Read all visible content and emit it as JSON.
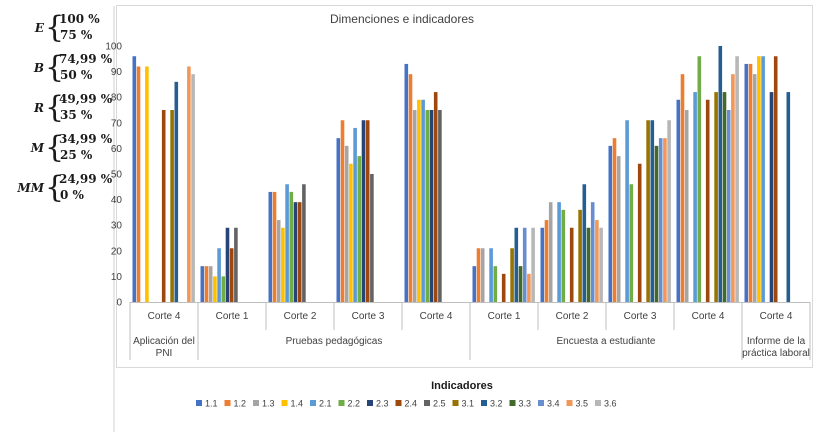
{
  "scale": [
    {
      "grade": "E",
      "upper": "100 %",
      "lower": "75 %"
    },
    {
      "grade": "B",
      "upper": "74,99 %",
      "lower": "50 %"
    },
    {
      "grade": "R",
      "upper": "49,99 %",
      "lower": "35 %"
    },
    {
      "grade": "M",
      "upper": "34,99 %",
      "lower": "25 %"
    },
    {
      "grade": "MM",
      "upper": "24,99 %",
      "lower": "0 %"
    }
  ],
  "chart_data": {
    "type": "bar",
    "title": "Dimenciones e indicadores",
    "legend_title": "Indicadores",
    "legend_position": "bottom",
    "ylim": [
      0,
      100
    ],
    "yticks": [
      0,
      10,
      20,
      30,
      40,
      50,
      60,
      70,
      80,
      90,
      100
    ],
    "grid": false,
    "colors": [
      "#4472C4",
      "#ED7D31",
      "#A5A5A5",
      "#FFC000",
      "#5B9BD5",
      "#70AD47",
      "#264478",
      "#9E480E",
      "#636363",
      "#997300",
      "#255E91",
      "#43682B",
      "#698ED0",
      "#F1975A",
      "#B7B7B7"
    ],
    "series_names": [
      "1.1",
      "1.2",
      "1.3",
      "1.4",
      "2.1",
      "2.2",
      "2.3",
      "2.4",
      "2.5",
      "3.1",
      "3.2",
      "3.3",
      "3.4",
      "3.5",
      "3.6"
    ],
    "groups": [
      {
        "label": "Aplicación del PNI",
        "categories": [
          "Corte 4"
        ]
      },
      {
        "label": "Pruebas pedagógicas",
        "categories": [
          "Corte 1",
          "Corte 2",
          "Corte 3",
          "Corte 4"
        ]
      },
      {
        "label": "Encuesta a estudiante",
        "categories": [
          "Corte 1",
          "Corte 2",
          "Corte 3",
          "Corte 4"
        ]
      },
      {
        "label": "Informe de la práctica laboral",
        "categories": [
          "Corte 4"
        ]
      }
    ],
    "values": [
      [
        96,
        92,
        0,
        92,
        0,
        0,
        0,
        75,
        0,
        75,
        86,
        0,
        0,
        92,
        89
      ],
      [
        14,
        14,
        14,
        10,
        21,
        10,
        29,
        21,
        29,
        0,
        0,
        0,
        0,
        0,
        0
      ],
      [
        43,
        43,
        32,
        29,
        46,
        43,
        39,
        39,
        46,
        0,
        0,
        0,
        0,
        0,
        0
      ],
      [
        64,
        71,
        61,
        54,
        68,
        57,
        71,
        71,
        50,
        0,
        0,
        0,
        0,
        0,
        0
      ],
      [
        93,
        89,
        75,
        79,
        79,
        75,
        75,
        82,
        75,
        0,
        0,
        0,
        0,
        0,
        0
      ],
      [
        14,
        21,
        21,
        0,
        21,
        14,
        0,
        11,
        0,
        21,
        29,
        14,
        29,
        11,
        29
      ],
      [
        29,
        32,
        39,
        0,
        39,
        36,
        0,
        29,
        0,
        36,
        46,
        29,
        39,
        32,
        29
      ],
      [
        61,
        64,
        57,
        0,
        71,
        46,
        0,
        54,
        0,
        71,
        71,
        61,
        64,
        64,
        71
      ],
      [
        79,
        89,
        75,
        0,
        82,
        96,
        0,
        79,
        0,
        82,
        100,
        82,
        75,
        89,
        96
      ],
      [
        93,
        93,
        89,
        96,
        96,
        0,
        82,
        96,
        0,
        0,
        82,
        0,
        0,
        0,
        0
      ]
    ]
  }
}
